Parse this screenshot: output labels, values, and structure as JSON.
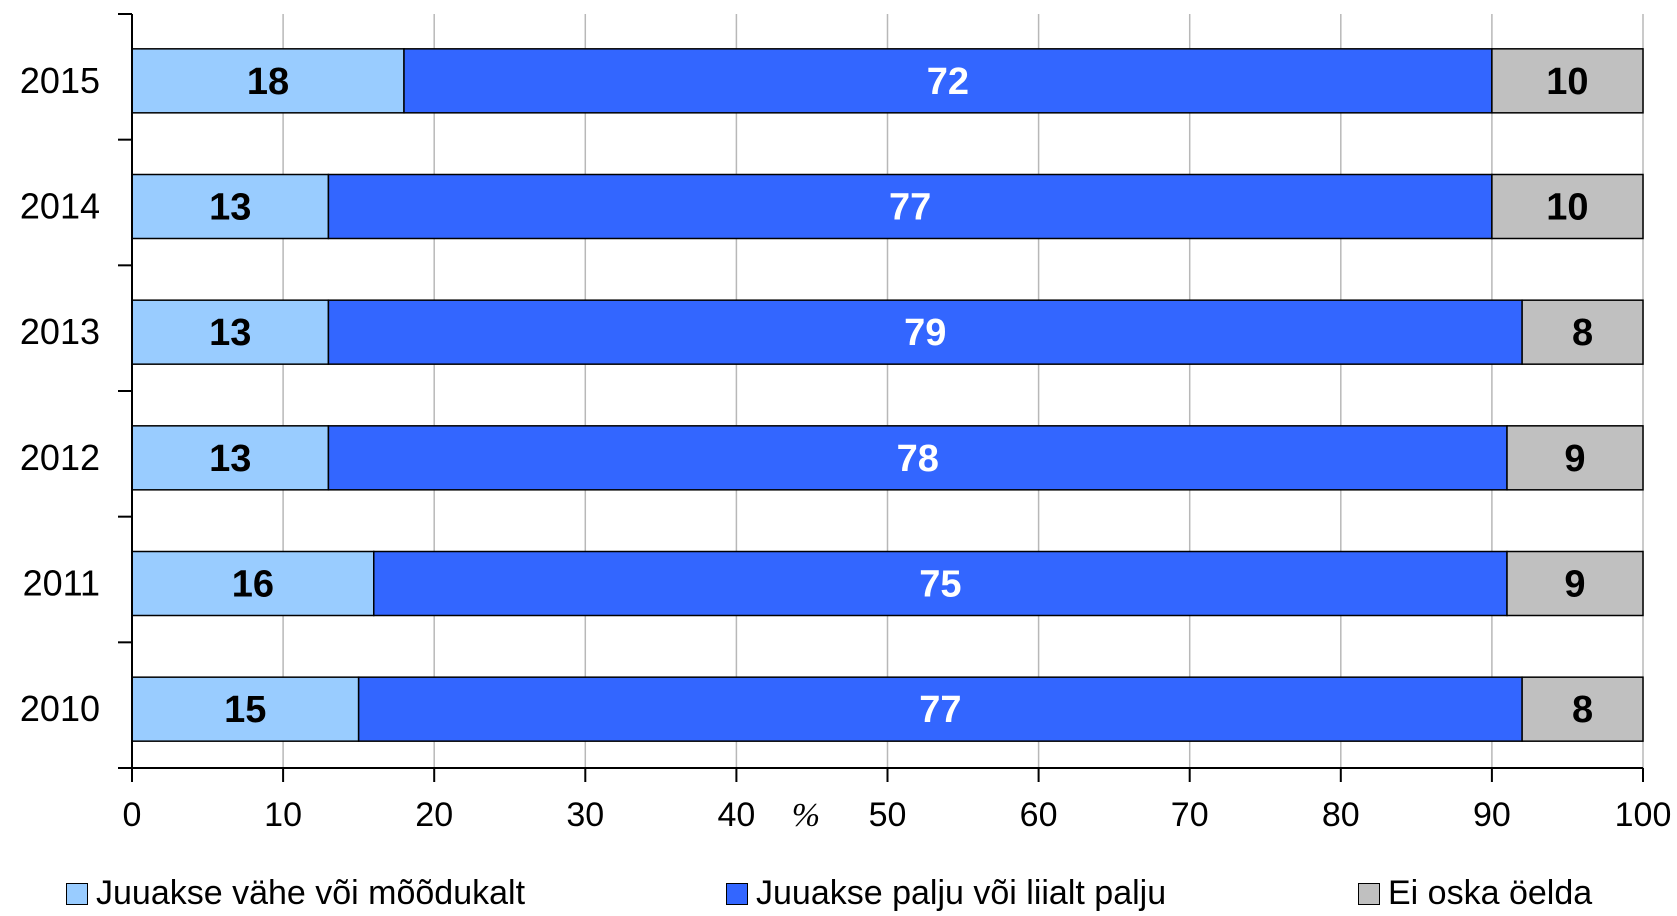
{
  "chart_data": {
    "type": "bar",
    "orientation": "horizontal",
    "stacked": true,
    "categories": [
      "2015",
      "2014",
      "2013",
      "2012",
      "2011",
      "2010"
    ],
    "series": [
      {
        "name": "Juuakse vähe või mõõdukalt",
        "color": "#99ccff",
        "label_color": "#000000",
        "values": [
          18,
          13,
          13,
          13,
          16,
          15
        ]
      },
      {
        "name": "Juuakse palju või liialt palju",
        "color": "#3366ff",
        "label_color": "#ffffff",
        "values": [
          72,
          77,
          79,
          78,
          75,
          77
        ]
      },
      {
        "name": "Ei oska öelda",
        "color": "#c0c0c0",
        "label_color": "#000000",
        "values": [
          10,
          10,
          8,
          9,
          9,
          8
        ]
      }
    ],
    "xlim": [
      0,
      100
    ],
    "xticks": [
      "0",
      "10",
      "20",
      "30",
      "40",
      "50",
      "60",
      "70",
      "80",
      "90",
      "100"
    ],
    "x_unit_label": "%",
    "grid": "vertical",
    "legend_position": "bottom"
  }
}
